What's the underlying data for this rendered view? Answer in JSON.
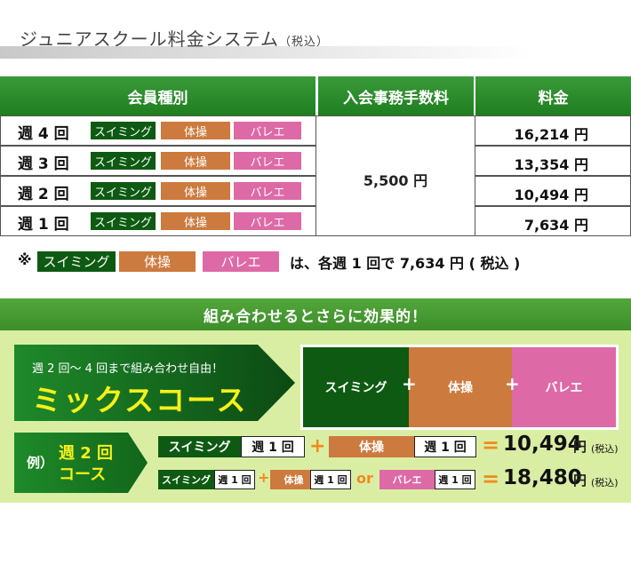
{
  "title": {
    "main": "ジュニアスクール料金システム",
    "sub": "（税込）"
  },
  "table": {
    "headers": {
      "type": "会員種別",
      "fee": "入会事務手数料",
      "price": "料金"
    },
    "tags": {
      "swim": "スイミング",
      "gym": "体操",
      "ballet": "バレエ"
    },
    "rows": [
      {
        "label": "週 4 回",
        "price": "16,214 円"
      },
      {
        "label": "週 3 回",
        "price": "13,354 円"
      },
      {
        "label": "週 2 回",
        "price": "10,494 円"
      },
      {
        "label": "週 1 回",
        "price": "7,634 円"
      }
    ],
    "fee_value": "5,500 円"
  },
  "note": {
    "mark": "※",
    "suffix": "は、各週 1 回で 7,634 円 ( 税込 )"
  },
  "combo": {
    "banner": "組み合わせるとさらに効果的！",
    "mix_sub": "週 2 回〜 4 回まで組み合わせ自由！",
    "mix_main": "ミックスコース",
    "plus": "+",
    "example_label": "例）",
    "example_line1": "週 2 回",
    "example_line2": "コース",
    "per_week": "週 1 回",
    "or": "or",
    "equals": "=",
    "total": "10,494",
    "total2": "18,480",
    "yen": "円",
    "tax": "(税込)"
  },
  "colors": {
    "green": "#0e5a12",
    "orange": "#cc7a3e",
    "pink": "#dd6aa6",
    "header": "#2b8a2b"
  }
}
